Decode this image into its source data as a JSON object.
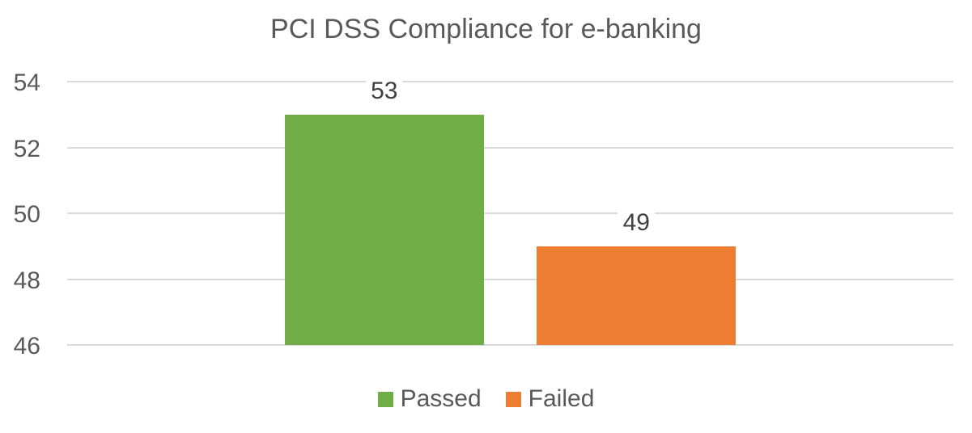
{
  "chart_data": {
    "type": "bar",
    "title": "PCI DSS Compliance for e-banking",
    "categories": [
      "Passed",
      "Failed"
    ],
    "values": [
      53,
      49
    ],
    "data_labels": [
      "53",
      "49"
    ],
    "colors": [
      "#70AD47",
      "#ED7D31"
    ],
    "xlabel": "",
    "ylabel": "",
    "ylim": [
      46,
      54
    ],
    "yticks": [
      54,
      52,
      50,
      48,
      46
    ],
    "gridlines": "horizontal-major",
    "gridline_color": "#D9D9D9",
    "text_color": "#595959",
    "data_label_color": "#404040",
    "background_color": "#FFFFFF",
    "legend_position": "bottom",
    "legend": [
      "Passed",
      "Failed"
    ]
  }
}
